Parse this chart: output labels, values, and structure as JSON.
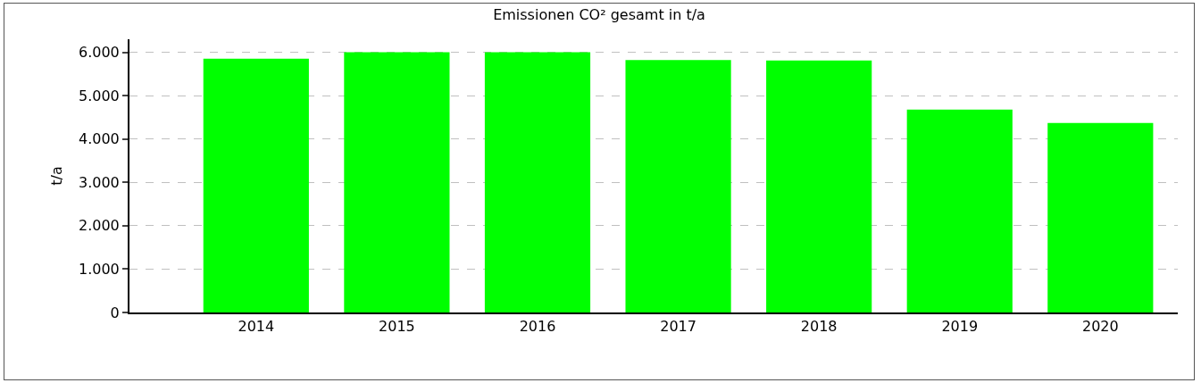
{
  "chart_data": {
    "type": "bar",
    "title": "Emissionen CO² gesamt in t/a",
    "ylabel": "t/a",
    "categories": [
      "2014",
      "2015",
      "2016",
      "2017",
      "2018",
      "2019",
      "2020"
    ],
    "values": [
      5850,
      6000,
      6000,
      5820,
      5810,
      4680,
      4370
    ],
    "color": "#00ff00",
    "ylim": [
      0,
      6300
    ],
    "yticks": [
      {
        "value": 0,
        "label": "0"
      },
      {
        "value": 1000,
        "label": "1.000"
      },
      {
        "value": 2000,
        "label": "2.000"
      },
      {
        "value": 3000,
        "label": "3.000"
      },
      {
        "value": 4000,
        "label": "4.000"
      },
      {
        "value": 5000,
        "label": "5.000"
      },
      {
        "value": 6000,
        "label": "6.000"
      }
    ],
    "grid": "y"
  }
}
